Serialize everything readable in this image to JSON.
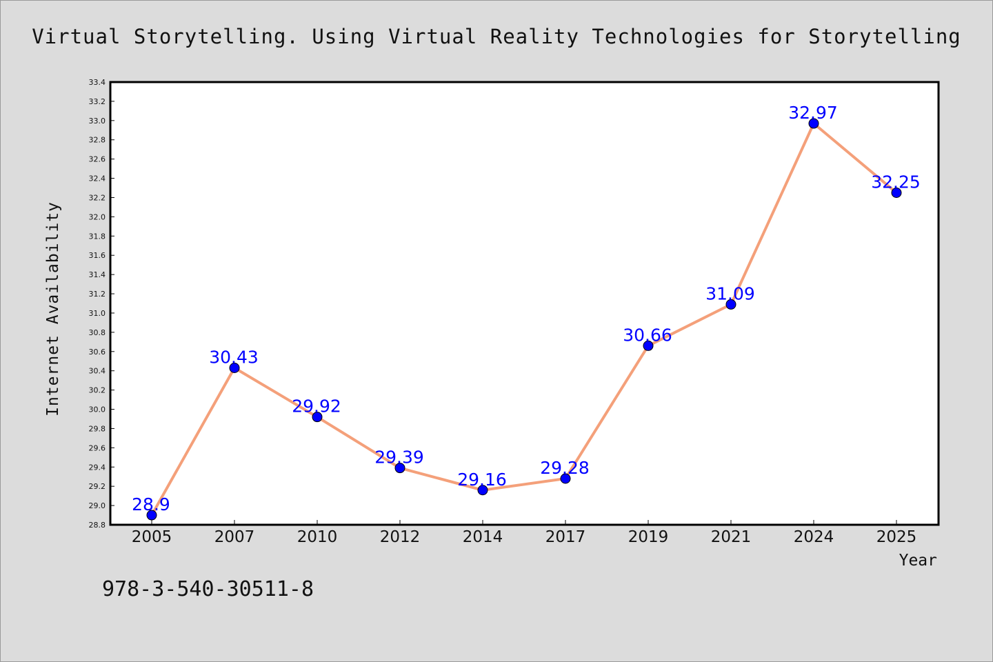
{
  "chart_data": {
    "type": "line",
    "title": "Virtual Storytelling. Using Virtual Reality Technologies for Storytelling",
    "xlabel": "Year",
    "ylabel": "Internet Availability",
    "categories": [
      "2005",
      "2007",
      "2010",
      "2012",
      "2014",
      "2017",
      "2019",
      "2021",
      "2024",
      "2025"
    ],
    "series": [
      {
        "values": [
          28.9,
          30.43,
          29.92,
          29.39,
          29.16,
          29.28,
          30.66,
          31.09,
          32.97,
          32.25
        ]
      }
    ],
    "data_labels": [
      "28.9",
      "30.43",
      "29.92",
      "29.39",
      "29.16",
      "29.28",
      "30.66",
      "31.09",
      "32.97",
      "32.25"
    ],
    "ylim": [
      28.8,
      33.4
    ],
    "yticks": [
      "28.8",
      "29.0",
      "29.2",
      "29.4",
      "29.6",
      "29.8",
      "30.0",
      "30.2",
      "30.4",
      "30.6",
      "30.8",
      "31.0",
      "31.2",
      "31.4",
      "31.6",
      "31.8",
      "32.0",
      "32.2",
      "32.4",
      "32.6",
      "32.8",
      "33.0",
      "33.2",
      "33.4"
    ],
    "grid": false,
    "line_color": "#f4a07a",
    "marker_color": "#0000ff",
    "label_color": "#0000ff"
  },
  "note": "978-3-540-30511-8"
}
